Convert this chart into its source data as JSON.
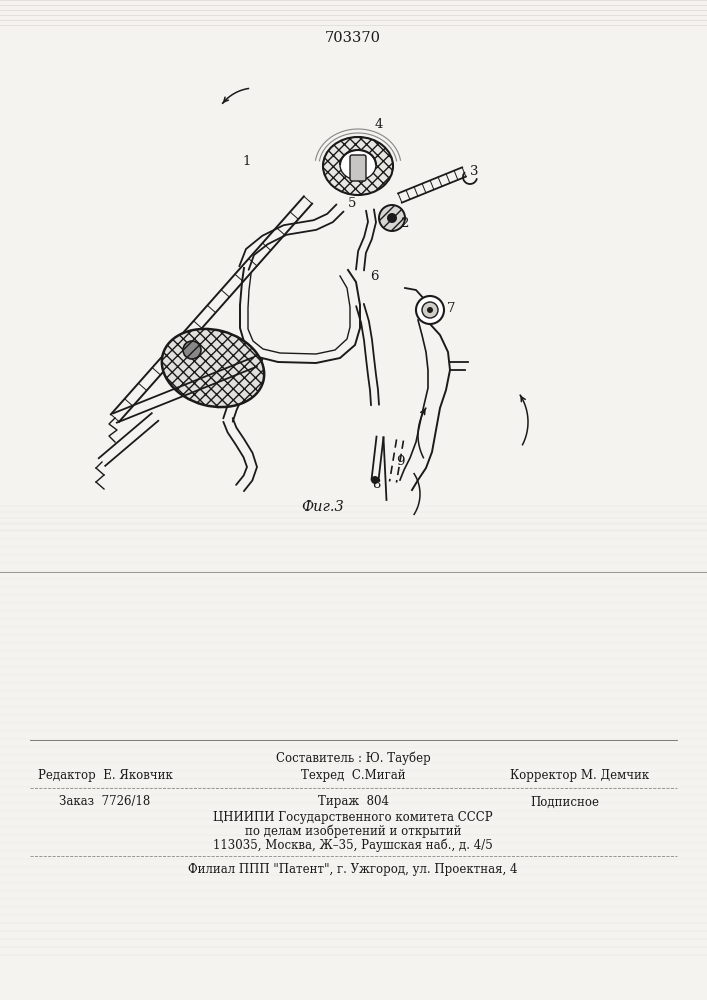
{
  "patent_number": "703370",
  "fig_label": "Фиг.3",
  "background_color": "#f5f3ef",
  "line_color": "#1a1a1a",
  "footer": {
    "author": "Составитель : Ю. Таубер",
    "editor": "Редактор  Е. Яковчик",
    "techred": "Техред  С.Мигай",
    "corrector": "Корректор М. Демчик",
    "order": "Заказ  7726/18",
    "print": "Тираж  804",
    "signed": "Подписное",
    "org1": "ЦНИИПИ Государственного комитета СССР",
    "org2": "по делам изобретений и открытий",
    "org3": "113035, Москва, Ж–35, Раушская наб., д. 4/5",
    "branch": "Филиал ППП \"Патент\", г. Ужгород, ул. Проектная, 4"
  }
}
